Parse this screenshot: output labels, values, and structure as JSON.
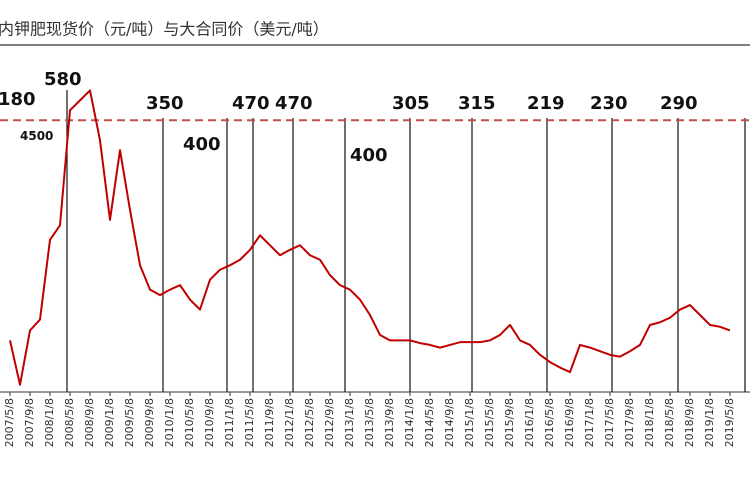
{
  "chart_data": {
    "type": "line",
    "title": "内钾肥现货价（元/吨）与大合同价（美元/吨）",
    "categories": [
      "2007/5/8",
      null,
      "2007/9/8",
      null,
      "2008/1/8",
      null,
      "2008/5/8",
      null,
      "2008/9/8",
      null,
      "2009/1/8",
      null,
      "2009/5/8",
      null,
      "2009/9/8",
      null,
      "2010/1/8",
      null,
      "2010/5/8",
      null,
      "2010/9/8",
      null,
      "2011/1/8",
      null,
      "2011/5/8",
      null,
      "2011/9/8",
      null,
      "2012/1/8",
      null,
      "2012/5/8",
      null,
      "2012/9/8",
      null,
      "2013/1/8",
      null,
      "2013/5/8",
      null,
      "2013/9/8",
      null,
      "2014/1/8",
      null,
      "2014/5/8",
      null,
      "2014/9/8",
      null,
      "2015/1/8",
      null,
      "2015/5/8",
      null,
      "2015/9/8",
      null,
      "2016/1/8",
      null,
      "2016/5/8",
      null,
      "2016/9/8",
      null,
      "2017/1/8",
      null,
      "2017/5/8",
      null,
      "2017/9/8",
      null,
      "2018/1/8",
      null,
      "2018/5/8",
      null,
      "2018/9/8",
      null,
      "2019/1/8",
      null,
      "2019/5/8"
    ],
    "values": [
      2070,
      1580,
      2180,
      2300,
      3180,
      3340,
      4610,
      4720,
      4830,
      4280,
      3400,
      4170,
      3510,
      2900,
      2630,
      2570,
      2630,
      2680,
      2520,
      2410,
      2740,
      2850,
      2900,
      2960,
      3070,
      3230,
      3120,
      3010,
      3070,
      3120,
      3010,
      2960,
      2790,
      2680,
      2630,
      2520,
      2350,
      2130,
      2070,
      2070,
      2070,
      2040,
      2020,
      1990,
      2020,
      2050,
      2050,
      2050,
      2070,
      2130,
      2240,
      2070,
      2020,
      1910,
      1830,
      1770,
      1720,
      2020,
      1990,
      1950,
      1910,
      1890,
      1950,
      2020,
      2240,
      2270,
      2320,
      2410,
      2460,
      2350,
      2240,
      2220,
      2180
    ],
    "color": "#c00000",
    "ylim": [
      1500,
      5000
    ],
    "reference_line": 4500,
    "contract_prices": [
      180,
      580,
      350,
      400,
      470,
      470,
      400,
      305,
      315,
      219,
      230,
      290
    ]
  }
}
